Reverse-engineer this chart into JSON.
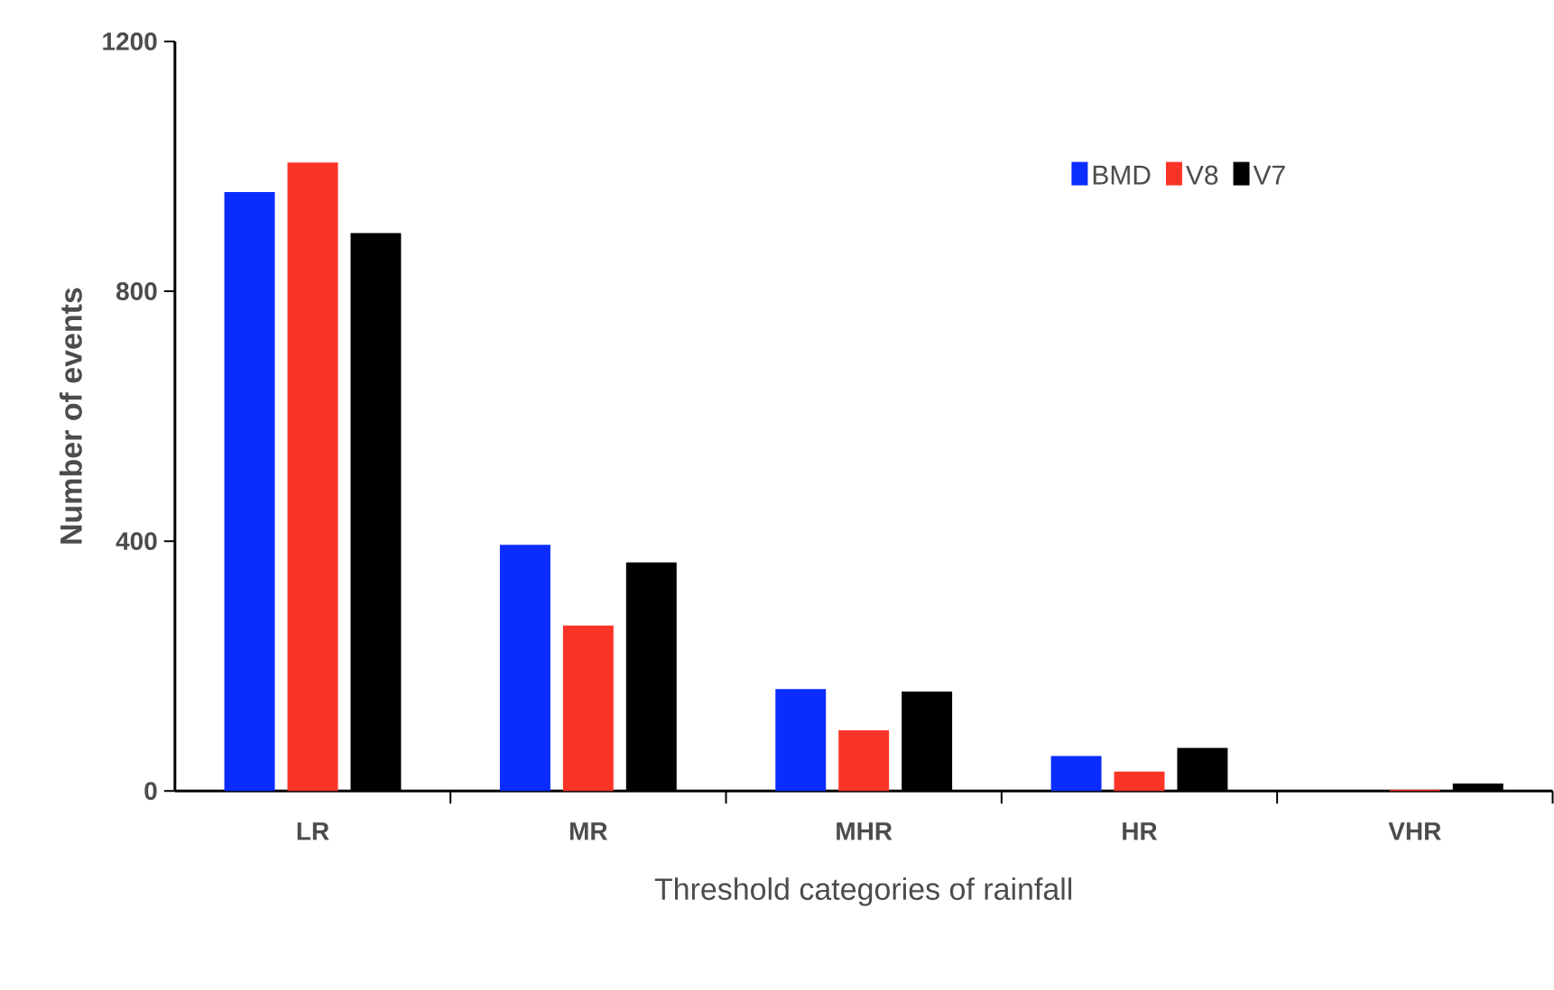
{
  "chart_data": {
    "type": "bar",
    "xlabel": "Threshold categories of rainfall",
    "ylabel": "Number of events",
    "categories": [
      "LR",
      "MR",
      "MHR",
      "HR",
      "VHR"
    ],
    "series": [
      {
        "name": "BMD",
        "color": "#0a2cff",
        "values": [
          959,
          394,
          163,
          56,
          0
        ]
      },
      {
        "name": "V8",
        "color": "#fb3428",
        "values": [
          1006,
          265,
          97,
          31,
          2
        ]
      },
      {
        "name": "V7",
        "color": "#000000",
        "values": [
          893,
          366,
          159,
          69,
          12
        ]
      }
    ],
    "ylim": [
      0,
      1200
    ],
    "yticks": [
      0,
      400,
      800,
      1200
    ],
    "legend": "top right"
  }
}
